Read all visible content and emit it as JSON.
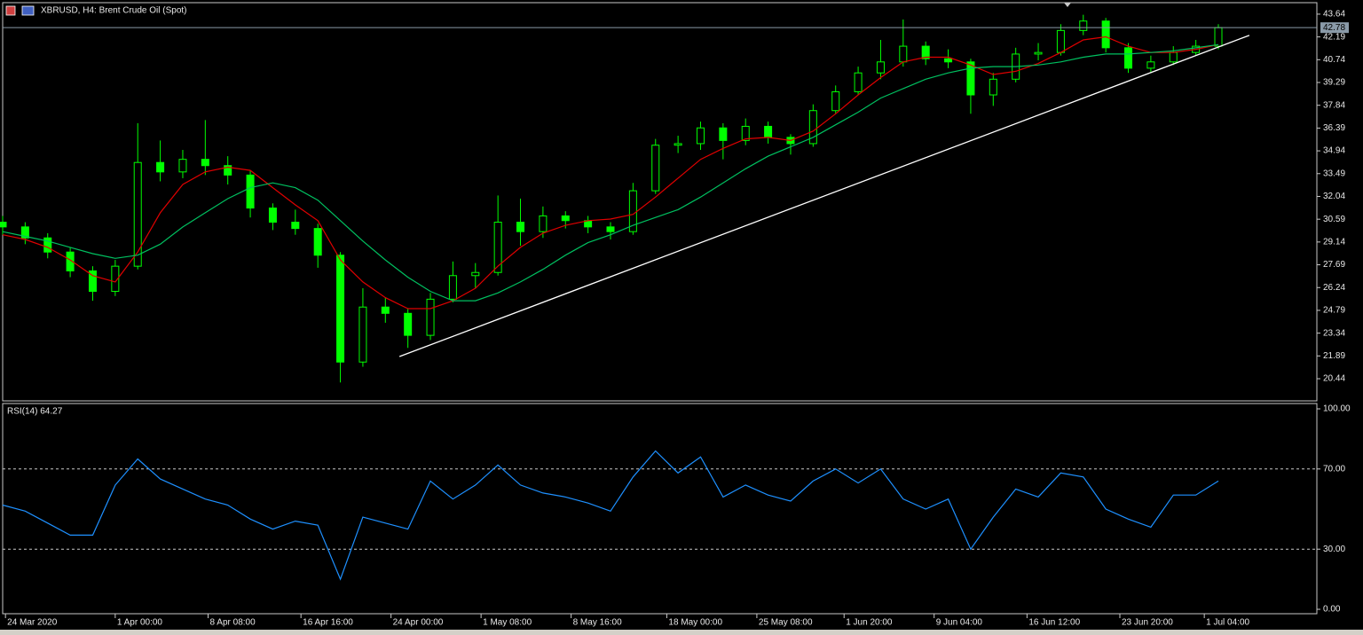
{
  "chart_data": [
    {
      "type": "candlestick",
      "title": "XBRUSD, H4:  Brent Crude Oil (Spot)",
      "x": [
        0,
        8,
        16,
        24,
        32,
        40,
        48,
        56,
        64,
        72,
        80,
        88,
        96,
        104,
        112,
        120,
        128,
        136,
        144,
        152,
        160,
        168,
        176,
        184,
        192,
        200,
        208,
        216,
        224,
        232,
        240,
        248,
        256,
        264,
        272,
        280,
        288,
        296,
        304,
        312,
        320,
        328,
        336,
        344,
        352,
        360,
        368,
        376,
        384,
        392,
        400,
        408,
        416,
        424,
        432
      ],
      "open": [
        30.4,
        30.1,
        29.4,
        28.5,
        27.3,
        26.0,
        27.6,
        34.2,
        33.6,
        34.4,
        34.0,
        33.4,
        31.3,
        30.4,
        30.0,
        28.3,
        21.5,
        25.0,
        24.6,
        23.2,
        25.5,
        27.0,
        27.2,
        30.4,
        29.8,
        30.8,
        30.5,
        30.1,
        29.8,
        32.4,
        35.3,
        35.4,
        36.4,
        35.6,
        36.5,
        35.8,
        35.4,
        37.5,
        38.7,
        39.9,
        40.6,
        41.6,
        40.8,
        40.6,
        38.5,
        39.5,
        41.1,
        41.2,
        42.6,
        43.2,
        41.5,
        40.2,
        40.6,
        41.2,
        41.6
      ],
      "high": [
        30.8,
        30.4,
        29.7,
        28.8,
        27.6,
        28.0,
        36.7,
        35.6,
        35.0,
        36.9,
        34.6,
        33.7,
        31.6,
        31.2,
        30.3,
        28.5,
        26.2,
        25.6,
        24.9,
        25.9,
        27.9,
        27.8,
        32.1,
        31.9,
        31.4,
        31.1,
        30.8,
        30.4,
        32.9,
        35.7,
        35.9,
        36.8,
        36.7,
        37.0,
        36.8,
        36.0,
        37.9,
        39.1,
        40.3,
        42.0,
        43.3,
        41.9,
        41.4,
        40.8,
        39.9,
        41.5,
        41.8,
        43.0,
        43.6,
        43.4,
        41.8,
        41.0,
        41.6,
        42.0,
        43.0
      ],
      "low": [
        29.6,
        29.0,
        28.1,
        26.9,
        25.4,
        25.7,
        27.4,
        33.0,
        33.2,
        33.4,
        32.8,
        30.7,
        29.9,
        29.6,
        27.5,
        20.2,
        21.2,
        24.0,
        22.4,
        22.9,
        25.3,
        26.2,
        27.0,
        28.9,
        29.4,
        30.0,
        29.7,
        29.3,
        29.6,
        32.2,
        34.8,
        35.0,
        34.4,
        35.3,
        35.4,
        34.7,
        35.2,
        37.3,
        38.5,
        39.5,
        40.3,
        40.4,
        40.2,
        37.3,
        37.8,
        39.3,
        40.7,
        41.0,
        42.3,
        41.2,
        39.9,
        39.9,
        40.4,
        41.0,
        41.4
      ],
      "close": [
        30.1,
        29.4,
        28.5,
        27.3,
        26.0,
        27.6,
        34.2,
        33.6,
        34.4,
        34.0,
        33.4,
        31.3,
        30.4,
        30.0,
        28.3,
        21.5,
        25.0,
        24.6,
        23.2,
        25.5,
        27.0,
        27.2,
        30.4,
        29.8,
        30.8,
        30.5,
        30.1,
        29.8,
        32.4,
        35.3,
        35.4,
        36.4,
        35.6,
        36.5,
        35.8,
        35.4,
        37.5,
        38.7,
        39.9,
        40.6,
        41.6,
        40.8,
        40.6,
        38.5,
        39.5,
        41.1,
        41.2,
        42.6,
        43.2,
        41.5,
        40.2,
        40.6,
        41.2,
        41.6,
        42.78
      ],
      "color": "#00ff00",
      "series": [
        {
          "color": "#e00000",
          "values": [
            29.6,
            29.3,
            28.8,
            28.0,
            27.0,
            26.6,
            28.5,
            31.0,
            32.8,
            33.6,
            33.9,
            33.7,
            32.6,
            31.5,
            30.5,
            28.0,
            26.6,
            25.6,
            24.9,
            24.9,
            25.4,
            26.2,
            27.6,
            28.8,
            29.7,
            30.2,
            30.5,
            30.6,
            30.9,
            32.0,
            33.2,
            34.4,
            35.1,
            35.7,
            35.8,
            35.6,
            36.2,
            37.3,
            38.5,
            39.6,
            40.6,
            40.9,
            40.9,
            40.4,
            39.8,
            40.0,
            40.5,
            41.2,
            42.0,
            42.2,
            41.6,
            41.2,
            41.2,
            41.4,
            41.7
          ]
        },
        {
          "color": "#00c060",
          "values": [
            29.8,
            29.5,
            29.2,
            28.8,
            28.4,
            28.1,
            28.3,
            29.0,
            30.1,
            31.0,
            31.9,
            32.6,
            32.9,
            32.6,
            31.8,
            30.5,
            29.2,
            28.0,
            26.9,
            26.0,
            25.4,
            25.4,
            25.9,
            26.6,
            27.4,
            28.3,
            29.1,
            29.6,
            30.2,
            30.7,
            31.2,
            32.0,
            32.9,
            33.8,
            34.6,
            35.2,
            35.8,
            36.6,
            37.4,
            38.3,
            38.9,
            39.5,
            39.9,
            40.2,
            40.3,
            40.3,
            40.4,
            40.6,
            40.9,
            41.1,
            41.1,
            41.2,
            41.3,
            41.5,
            41.7
          ]
        }
      ],
      "trendline": {
        "x": [
          141,
          443
        ],
        "y": [
          21.85,
          42.29
        ],
        "color": "#ffffff"
      },
      "current_price": 42.78,
      "xlim": [
        0,
        467
      ],
      "ylim": [
        19.03,
        44.37
      ],
      "yticks": [
        43.64,
        42.19,
        40.74,
        39.29,
        37.84,
        36.39,
        34.94,
        33.49,
        32.04,
        30.59,
        29.14,
        27.69,
        26.24,
        24.79,
        23.34,
        21.89,
        20.44
      ]
    },
    {
      "type": "line",
      "title": "RSI(14) 64.27",
      "x": [
        0,
        8,
        16,
        24,
        32,
        40,
        48,
        56,
        64,
        72,
        80,
        88,
        96,
        104,
        112,
        120,
        128,
        136,
        144,
        152,
        160,
        168,
        176,
        184,
        192,
        200,
        208,
        216,
        224,
        232,
        240,
        248,
        256,
        264,
        272,
        280,
        288,
        296,
        304,
        312,
        320,
        328,
        336,
        344,
        352,
        360,
        368,
        376,
        384,
        392,
        400,
        408,
        416,
        424,
        432
      ],
      "values": [
        52,
        49,
        43,
        37,
        37,
        62,
        75,
        65,
        60,
        55,
        52,
        45,
        40,
        44,
        42,
        15,
        46,
        43,
        40,
        64,
        55,
        62,
        72,
        62,
        58,
        56,
        53,
        49,
        66,
        79,
        68,
        76,
        56,
        62,
        57,
        54,
        64,
        70,
        63,
        70,
        55,
        50,
        55,
        30,
        46,
        60,
        56,
        68,
        66,
        50,
        45,
        41,
        57,
        57,
        64
      ],
      "color": "#1e90ff",
      "levels": [
        70,
        30
      ],
      "xlim": [
        0,
        467
      ],
      "ylim": [
        -2.2,
        102.65
      ],
      "yticks": [
        {
          "value": 100,
          "label": "100.00"
        },
        {
          "value": 70,
          "label": "70.00"
        },
        {
          "value": 30,
          "label": "30.00"
        },
        {
          "value": 0,
          "label": "0.00"
        }
      ],
      "xticks": [
        {
          "value": 1,
          "label": "24 Mar 2020"
        },
        {
          "value": 40,
          "label": "1 Apr 00:00"
        },
        {
          "value": 73,
          "label": "8 Apr 08:00"
        },
        {
          "value": 106,
          "label": "16 Apr 16:00"
        },
        {
          "value": 138,
          "label": "24 Apr 00:00"
        },
        {
          "value": 170,
          "label": "1 May 08:00"
        },
        {
          "value": 202,
          "label": "8 May 16:00"
        },
        {
          "value": 236,
          "label": "18 May 00:00"
        },
        {
          "value": 268,
          "label": "25 May 08:00"
        },
        {
          "value": 299,
          "label": "1 Jun 20:00"
        },
        {
          "value": 331,
          "label": "9 Jun 04:00"
        },
        {
          "value": 364,
          "label": "16 Jun 12:00"
        },
        {
          "value": 397,
          "label": "23 Jun 20:00"
        },
        {
          "value": 427,
          "label": "1 Jul 04:00"
        }
      ]
    }
  ]
}
